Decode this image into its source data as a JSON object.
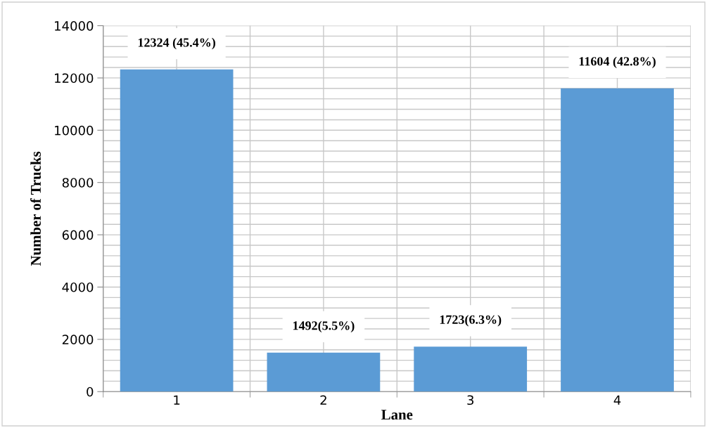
{
  "chart_data": {
    "type": "bar",
    "xlabel": "Lane",
    "ylabel": "Number of Trucks",
    "categories": [
      "1",
      "2",
      "3",
      "4"
    ],
    "values": [
      12324,
      1492,
      1723,
      11604
    ],
    "color": "#5b9bd5",
    "value_labels": [
      "12324 (45.4%)",
      "1492(5.5%)",
      "1723(6.3%)",
      "11604 (42.8%)"
    ],
    "ylim": [
      0,
      14000
    ],
    "yticks": [
      0,
      2000,
      4000,
      6000,
      8000,
      10000,
      12000,
      14000
    ],
    "grid": true
  }
}
